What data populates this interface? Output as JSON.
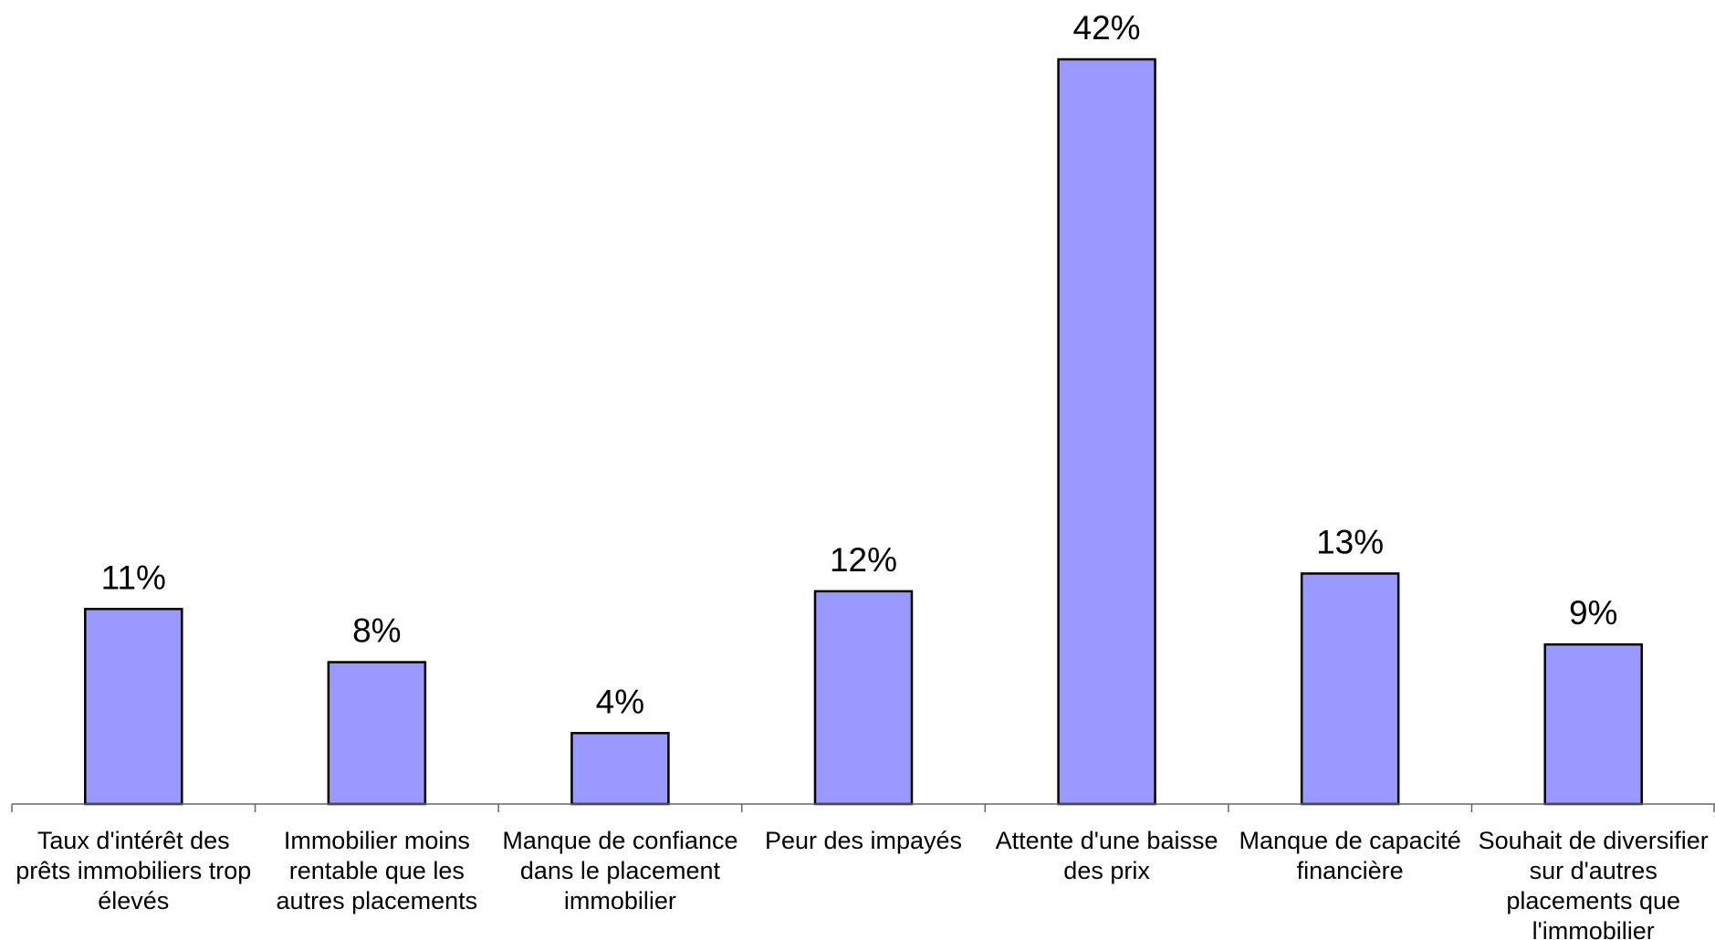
{
  "chart_data": {
    "type": "bar",
    "categories": [
      [
        "Taux d'intérêt des",
        "prêts immobiliers trop",
        "élevés"
      ],
      [
        "Immobilier moins",
        "rentable que les",
        "autres placements"
      ],
      [
        "Manque de confiance",
        "dans le placement",
        "immobilier"
      ],
      [
        "Peur des impayés"
      ],
      [
        "Attente d'une baisse",
        "des prix"
      ],
      [
        "Manque de capacité",
        "financière"
      ],
      [
        "Souhait de diversifier",
        "sur d'autres",
        "placements que",
        "l'immobilier"
      ]
    ],
    "values": [
      11,
      8,
      4,
      12,
      42,
      13,
      9
    ],
    "data_labels": [
      "11%",
      "8%",
      "4%",
      "12%",
      "42%",
      "13%",
      "9%"
    ],
    "ylim": [
      0,
      42
    ],
    "bar_color": "#9999ff",
    "bar_outline": "#000000",
    "grid": false,
    "legend": false
  }
}
